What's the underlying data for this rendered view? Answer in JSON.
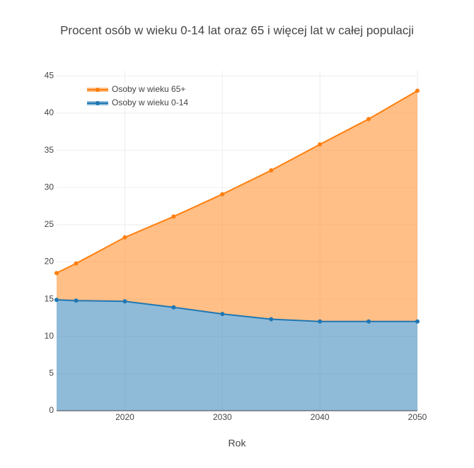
{
  "chart_data": {
    "type": "area",
    "title": "Procent osób w wieku 0-14 lat oraz 65 i więcej lat w całej populacji",
    "xlabel": "Rok",
    "x": [
      2013,
      2015,
      2020,
      2025,
      2030,
      2035,
      2040,
      2045,
      2050
    ],
    "series": [
      {
        "name": "Osoby w wieku 65+",
        "color": "#ff7f0e",
        "values": [
          18.5,
          19.8,
          23.3,
          26.1,
          29.1,
          32.3,
          35.8,
          39.2,
          43.0
        ]
      },
      {
        "name": "Osoby w wieku 0-14",
        "color": "#1f77b4",
        "values": [
          14.9,
          14.8,
          14.7,
          13.9,
          13.0,
          12.3,
          12.0,
          12.0,
          12.0
        ]
      }
    ],
    "xlim": [
      2013,
      2050
    ],
    "xticks": [
      2020,
      2030,
      2040,
      2050
    ],
    "ylim": [
      0,
      45.7
    ],
    "yticks": [
      0,
      5,
      10,
      15,
      20,
      25,
      30,
      35,
      40,
      45
    ],
    "grid": true,
    "legend": "top-left"
  }
}
